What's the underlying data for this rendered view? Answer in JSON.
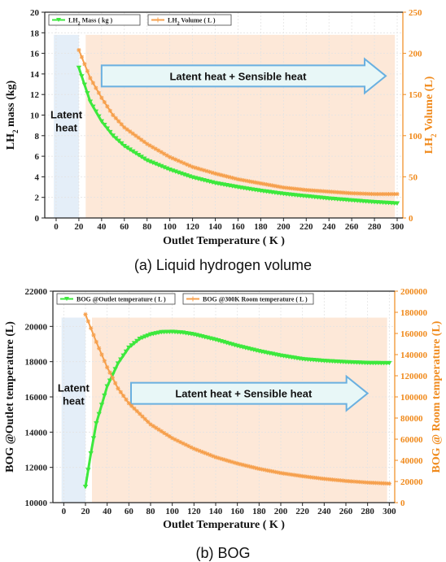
{
  "captions": {
    "a": "(a) Liquid hydrogen volume",
    "b": "(b) BOG"
  },
  "colors": {
    "green": "#3de83d",
    "orange": "#f6a04d",
    "latent_fill": "#e4eef8",
    "sensible_fill": "#fde8d8",
    "arrow_fill": "#e8f7f7",
    "arrow_stroke": "#6ab0e0"
  },
  "chart_data": [
    {
      "type": "line",
      "panel": "a",
      "xlabel": "Outlet Temperature ( K )",
      "ylabel": "LH2 mass (kg)",
      "ylabel_parts": [
        "LH",
        "2",
        " mass (kg)"
      ],
      "y2label": "LH2 Volume (L)",
      "y2label_parts": [
        "LH",
        "2",
        " Volume (L)"
      ],
      "xlim": [
        -10,
        305
      ],
      "ylim": [
        0,
        20
      ],
      "y2lim": [
        0,
        250
      ],
      "xticks": [
        "0",
        "20",
        "40",
        "60",
        "80",
        "100",
        "120",
        "140",
        "160",
        "180",
        "200",
        "220",
        "240",
        "260",
        "280",
        "300"
      ],
      "yticks": [
        "0",
        "2",
        "4",
        "6",
        "8",
        "10",
        "12",
        "14",
        "16",
        "18",
        "20"
      ],
      "y2ticks": [
        "0",
        "50",
        "100",
        "150",
        "200",
        "250"
      ],
      "legend": [
        {
          "label": "LH2 Mass ( kg )",
          "parts": [
            "LH",
            "2",
            " Mass ( kg )"
          ]
        },
        {
          "label": "LH2 Volume ( L )",
          "parts": [
            "LH",
            "2",
            " Volume ( L )"
          ]
        }
      ],
      "annotations": {
        "latent": [
          "Latent",
          "heat"
        ],
        "sensible": "Latent heat + Sensible heat"
      },
      "regions": {
        "latent": [
          -2,
          20
        ],
        "sensible": [
          26,
          298
        ],
        "top": 17.8
      },
      "series": [
        {
          "name": "LH2 Mass ( kg )",
          "axis": "left",
          "x": [
            20,
            30,
            40,
            50,
            60,
            80,
            100,
            120,
            140,
            160,
            180,
            200,
            220,
            240,
            260,
            280,
            300
          ],
          "y": [
            14.6,
            11.3,
            9.4,
            8.0,
            7.0,
            5.6,
            4.7,
            3.95,
            3.4,
            3.0,
            2.65,
            2.35,
            2.12,
            1.9,
            1.72,
            1.55,
            1.42
          ]
        },
        {
          "name": "LH2 Volume ( L )",
          "axis": "right",
          "x": [
            20,
            30,
            40,
            50,
            60,
            80,
            100,
            120,
            140,
            160,
            180,
            200,
            220,
            240,
            260,
            280,
            300
          ],
          "y": [
            204,
            170,
            146,
            125,
            110,
            90,
            74,
            62,
            54,
            47,
            42,
            37,
            34,
            32,
            30,
            29,
            29
          ]
        }
      ]
    },
    {
      "type": "line",
      "panel": "b",
      "xlabel": "Outlet Temperature ( K )",
      "ylabel": "BOG @Outlet temperature (L)",
      "y2label": "BOG @ Room temperature (L)",
      "xlim": [
        -10,
        305
      ],
      "ylim": [
        10000,
        22000
      ],
      "y2lim": [
        0,
        200000
      ],
      "xticks": [
        "0",
        "20",
        "40",
        "60",
        "80",
        "100",
        "120",
        "140",
        "160",
        "180",
        "200",
        "220",
        "240",
        "260",
        "280",
        "300"
      ],
      "yticks": [
        "10000",
        "12000",
        "14000",
        "16000",
        "18000",
        "20000",
        "22000"
      ],
      "y2ticks": [
        "0",
        "20000",
        "40000",
        "60000",
        "80000",
        "100000",
        "120000",
        "140000",
        "160000",
        "180000",
        "200000"
      ],
      "legend": [
        {
          "label": "BOG @Outlet temperature ( L )"
        },
        {
          "label": "BOG @300K Room temperature ( L )"
        }
      ],
      "annotations": {
        "latent": [
          "Latent",
          "heat"
        ],
        "sensible": "Latent heat + Sensible heat"
      },
      "regions": {
        "latent": [
          -2,
          20
        ],
        "sensible": [
          26,
          298
        ],
        "top": 20500
      },
      "series": [
        {
          "name": "BOG @Outlet temperature ( L )",
          "axis": "left",
          "x": [
            20,
            25,
            30,
            40,
            50,
            60,
            70,
            80,
            90,
            100,
            110,
            120,
            140,
            160,
            180,
            200,
            220,
            240,
            260,
            280,
            300
          ],
          "y": [
            10900,
            12800,
            14500,
            16600,
            17900,
            18800,
            19300,
            19550,
            19680,
            19700,
            19650,
            19550,
            19250,
            18900,
            18600,
            18350,
            18150,
            18050,
            17980,
            17930,
            17920
          ]
        },
        {
          "name": "BOG @300K Room temperature ( L )",
          "axis": "right",
          "x": [
            20,
            30,
            40,
            50,
            60,
            80,
            100,
            120,
            140,
            160,
            180,
            200,
            220,
            240,
            260,
            280,
            300
          ],
          "y": [
            178000,
            152000,
            128000,
            108000,
            94000,
            74000,
            61000,
            51000,
            43000,
            37000,
            32000,
            28000,
            25000,
            22500,
            20500,
            19000,
            18000
          ]
        }
      ]
    }
  ]
}
